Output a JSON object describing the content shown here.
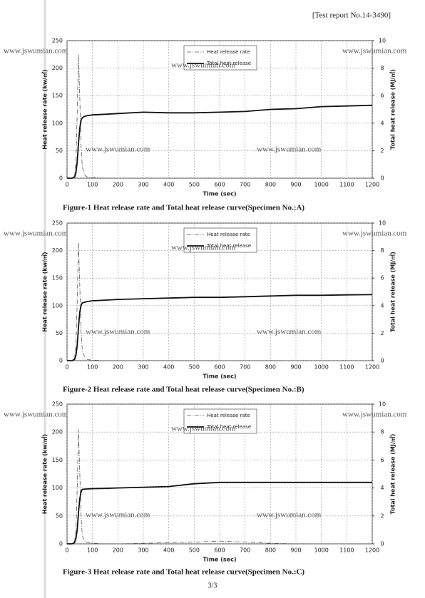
{
  "header": "[Test report No.14-3490]",
  "watermark": "www.jswumian.com",
  "page_number": "3/3",
  "chart_data": [
    {
      "type": "line",
      "title": "Figure-1  Heat release rate and Total heat release curve(Specimen No.:A)",
      "xlabel": "Time (sec)",
      "ylabel": "Heat release rate (kw/㎡)",
      "y2label": "Total heat release (MJ/㎡)",
      "x": [
        0,
        20,
        30,
        35,
        40,
        45,
        50,
        55,
        60,
        70,
        80,
        100,
        150,
        200,
        300,
        400,
        500,
        600,
        700,
        800,
        900,
        1000,
        1100,
        1200
      ],
      "xlim": [
        0,
        1200
      ],
      "xticks": [
        0,
        100,
        200,
        300,
        400,
        500,
        600,
        700,
        800,
        900,
        1000,
        1100,
        1200
      ],
      "ylim": [
        0,
        250
      ],
      "yticks": [
        0,
        50,
        100,
        150,
        200,
        250
      ],
      "y2lim": [
        0,
        10
      ],
      "y2ticks": [
        0,
        2,
        4,
        6,
        8,
        10
      ],
      "grid": true,
      "legend": "upper center",
      "series": [
        {
          "name": "Heat release rate",
          "color": "#555555",
          "values": [
            0,
            0,
            5,
            30,
            120,
            225,
            150,
            60,
            20,
            5,
            2,
            1,
            0,
            0,
            0,
            0,
            0,
            0,
            0,
            0,
            0,
            0,
            0,
            0
          ]
        },
        {
          "name": "Total heat release",
          "color": "#111111",
          "axis": "y2",
          "values": [
            0,
            0,
            0.1,
            0.4,
            1.2,
            2.5,
            3.6,
            4.2,
            4.4,
            4.5,
            4.55,
            4.6,
            4.65,
            4.7,
            4.8,
            4.75,
            4.75,
            4.8,
            4.85,
            5.0,
            5.05,
            5.2,
            5.25,
            5.3
          ]
        }
      ]
    },
    {
      "type": "line",
      "title": "Figure-2  Heat release rate and Total heat release curve(Specimen No.:B)",
      "xlabel": "Time (sec)",
      "ylabel": "Heat release rate (kw/㎡)",
      "y2label": "Total heat release (MJ/㎡)",
      "x": [
        0,
        20,
        30,
        35,
        40,
        45,
        50,
        55,
        60,
        70,
        80,
        100,
        150,
        200,
        300,
        400,
        500,
        600,
        700,
        800,
        900,
        1000,
        1100,
        1200
      ],
      "xlim": [
        0,
        1200
      ],
      "xticks": [
        0,
        100,
        200,
        300,
        400,
        500,
        600,
        700,
        800,
        900,
        1000,
        1100,
        1200
      ],
      "ylim": [
        0,
        250
      ],
      "yticks": [
        0,
        50,
        100,
        150,
        200,
        250
      ],
      "y2lim": [
        0,
        10
      ],
      "y2ticks": [
        0,
        2,
        4,
        6,
        8,
        10
      ],
      "grid": true,
      "legend": "upper center",
      "series": [
        {
          "name": "Heat release rate",
          "color": "#555555",
          "values": [
            0,
            0,
            5,
            30,
            110,
            215,
            140,
            55,
            18,
            5,
            2,
            1,
            0,
            0,
            0,
            0,
            0,
            0,
            0,
            0,
            0,
            0,
            0,
            0
          ]
        },
        {
          "name": "Total heat release",
          "color": "#111111",
          "axis": "y2",
          "values": [
            0,
            0,
            0.1,
            0.4,
            1.1,
            2.4,
            3.5,
            4.0,
            4.2,
            4.25,
            4.3,
            4.35,
            4.4,
            4.45,
            4.5,
            4.55,
            4.6,
            4.6,
            4.65,
            4.7,
            4.75,
            4.75,
            4.78,
            4.8
          ]
        }
      ]
    },
    {
      "type": "line",
      "title": "Figure-3  Heat release rate and Total heat release curve(Specimen No.:C)",
      "xlabel": "Time (sec)",
      "ylabel": "Heat release rate (kw/㎡)",
      "y2label": "Total heat release (MJ/㎡)",
      "x": [
        0,
        20,
        30,
        35,
        40,
        45,
        50,
        55,
        60,
        70,
        80,
        100,
        150,
        200,
        300,
        400,
        500,
        600,
        700,
        800,
        900,
        1000,
        1100,
        1200
      ],
      "xlim": [
        0,
        1200
      ],
      "xticks": [
        0,
        100,
        200,
        300,
        400,
        500,
        600,
        700,
        800,
        900,
        1000,
        1100,
        1200
      ],
      "ylim": [
        0,
        250
      ],
      "yticks": [
        0,
        50,
        100,
        150,
        200,
        250
      ],
      "y2lim": [
        0,
        10
      ],
      "y2ticks": [
        0,
        2,
        4,
        6,
        8,
        10
      ],
      "grid": true,
      "legend": "upper center",
      "series": [
        {
          "name": "Heat release rate",
          "color": "#555555",
          "values": [
            0,
            0,
            5,
            25,
            100,
            205,
            130,
            50,
            15,
            4,
            2,
            1,
            0,
            0,
            1,
            2,
            3,
            5,
            3,
            1,
            0,
            0,
            0,
            0
          ]
        },
        {
          "name": "Total heat release",
          "color": "#111111",
          "axis": "y2",
          "values": [
            0,
            0,
            0.1,
            0.4,
            1.0,
            2.2,
            3.2,
            3.7,
            3.9,
            3.92,
            3.93,
            3.95,
            3.97,
            4.0,
            4.05,
            4.1,
            4.3,
            4.4,
            4.4,
            4.4,
            4.4,
            4.4,
            4.4,
            4.4
          ]
        }
      ]
    }
  ]
}
